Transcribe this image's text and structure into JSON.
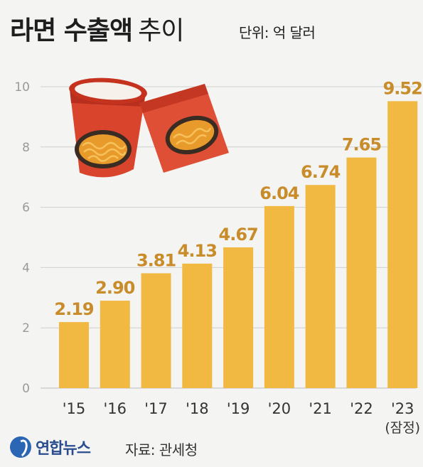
{
  "header": {
    "title_main": "라면 수출액",
    "title_sub": "추이",
    "unit": "단위: 억 달러"
  },
  "footer": {
    "logo": "연합뉴스",
    "source": "자료: 관세청"
  },
  "colors": {
    "bar": "#f1b842",
    "value_label": "#c98c2a",
    "axis_text": "#9a9a9a",
    "grid": "#cfcfcf"
  },
  "icons": [
    "cup-noodle-icon",
    "noodle-pack-icon"
  ],
  "chart_data": {
    "type": "bar",
    "title": "라면 수출액 추이",
    "ylabel": "",
    "xlabel": "",
    "categories": [
      "'15",
      "'16",
      "'17",
      "'18",
      "'19",
      "'20",
      "'21",
      "'22",
      "'23"
    ],
    "category_notes": [
      "",
      "",
      "",
      "",
      "",
      "",
      "",
      "",
      "(잠정)"
    ],
    "values": [
      2.19,
      2.9,
      3.81,
      4.13,
      4.67,
      6.04,
      6.74,
      7.65,
      9.52
    ],
    "value_labels": [
      "2.19",
      "2.90",
      "3.81",
      "4.13",
      "4.67",
      "6.04",
      "6.74",
      "7.65",
      "9.52"
    ],
    "yticks": [
      0,
      2,
      4,
      6,
      8,
      10
    ],
    "ylim": [
      0,
      10
    ],
    "grid": true
  }
}
